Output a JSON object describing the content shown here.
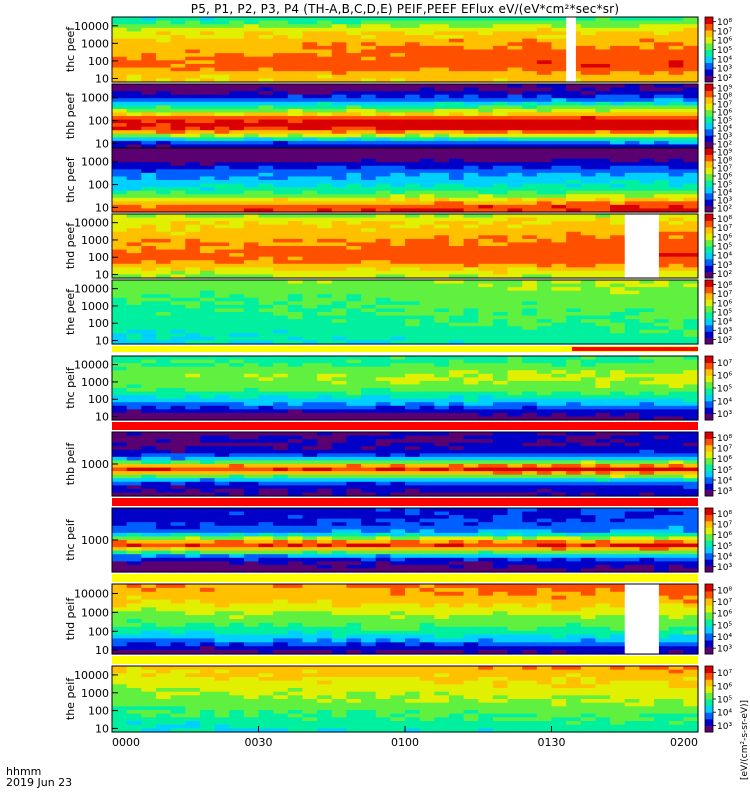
{
  "title": "P5, P1, P2, P3, P4 (TH-A,B,C,D,E) PEIF,PEEF EFlux eV/(eV*cm²*sec*sr)",
  "time_axis": {
    "unit_label": "hhmm",
    "date_label": "2019 Jun 23",
    "ticks": [
      "0000",
      "0030",
      "0100",
      "0130",
      "0200"
    ]
  },
  "colorbar_unit": "[eV/(cm²-s-sr-eV)]",
  "colors": {
    "spectrogram_scale": [
      "#5a0070",
      "#0000c8",
      "#0060ff",
      "#00d0ff",
      "#00f0a0",
      "#60f040",
      "#e0f000",
      "#ffc000",
      "#ff5000",
      "#d80000"
    ],
    "separator_red": "#ff0000",
    "separator_yellow": "#ffff00"
  },
  "chart_data": [
    {
      "type": "heatmap",
      "ylabel": "thc peef",
      "y_scale": "log",
      "y_ticks": [
        "10",
        "100",
        "1000",
        "10000"
      ],
      "x_range": [
        "0000",
        "0200"
      ],
      "colorbar_ticks": [
        "10²",
        "10³",
        "10⁴",
        "10⁵",
        "10⁶",
        "10⁷",
        "10⁸"
      ],
      "gaps": [
        {
          "x_from": "0133",
          "x_to": "0135"
        }
      ],
      "energy_profile": [
        0.72,
        0.74,
        0.78,
        0.82,
        0.86,
        0.85,
        0.84,
        0.83,
        0.82,
        0.8,
        0.78,
        0.76,
        0.72,
        0.7,
        0.66,
        0.6,
        0.52,
        0.45
      ]
    },
    {
      "type": "heatmap",
      "ylabel": "thb peef",
      "y_scale": "log",
      "y_ticks": [
        "10",
        "100",
        "1000"
      ],
      "x_range": [
        "0000",
        "0200"
      ],
      "colorbar_ticks": [
        "10²",
        "10³",
        "10⁴",
        "10⁵",
        "10⁶",
        "10⁷",
        "10⁸",
        "10⁹"
      ],
      "gaps": [],
      "energy_profile": [
        0.15,
        0.25,
        0.42,
        0.62,
        0.8,
        0.92,
        0.96,
        0.94,
        0.86,
        0.72,
        0.6,
        0.5,
        0.38,
        0.26,
        0.18,
        0.12,
        0.08,
        0.06
      ]
    },
    {
      "type": "heatmap",
      "ylabel": "thc peef",
      "y_scale": "log",
      "y_ticks": [
        "10",
        "100",
        "1000"
      ],
      "x_range": [
        "0000",
        "0200"
      ],
      "colorbar_ticks": [
        "10²",
        "10³",
        "10⁴",
        "10⁵",
        "10⁶",
        "10⁷",
        "10⁸",
        "10⁹"
      ],
      "gaps": [],
      "energy_profile": [
        0.9,
        0.86,
        0.78,
        0.68,
        0.58,
        0.5,
        0.44,
        0.4,
        0.36,
        0.33,
        0.3,
        0.25,
        0.2,
        0.14,
        0.08,
        0.04,
        0.02,
        0.0
      ]
    },
    {
      "type": "heatmap",
      "ylabel": "thd peef",
      "y_scale": "log",
      "y_ticks": [
        "10",
        "100",
        "1000",
        "10000"
      ],
      "x_range": [
        "0000",
        "0200"
      ],
      "colorbar_ticks": [
        "10²",
        "10³",
        "10⁴",
        "10⁵",
        "10⁶",
        "10⁷",
        "10⁸"
      ],
      "gaps": [
        {
          "x_from": "0145",
          "x_to": "0152"
        }
      ],
      "energy_profile": [
        0.62,
        0.66,
        0.72,
        0.78,
        0.82,
        0.84,
        0.85,
        0.84,
        0.83,
        0.82,
        0.8,
        0.78,
        0.76,
        0.74,
        0.72,
        0.7,
        0.66,
        0.6
      ]
    },
    {
      "type": "heatmap",
      "ylabel": "the peef",
      "y_scale": "log",
      "y_ticks": [
        "10",
        "100",
        "1000",
        "10000"
      ],
      "x_range": [
        "0000",
        "0200"
      ],
      "colorbar_ticks": [
        "10²",
        "10³",
        "10⁴",
        "10⁵",
        "10⁶",
        "10⁷",
        "10⁸"
      ],
      "gaps": [],
      "energy_profile": [
        0.42,
        0.43,
        0.44,
        0.45,
        0.46,
        0.47,
        0.48,
        0.49,
        0.5,
        0.5,
        0.51,
        0.52,
        0.53,
        0.54,
        0.55,
        0.56,
        0.57,
        0.58
      ]
    },
    {
      "type": "heatmap",
      "ylabel": "thc peif",
      "y_scale": "log",
      "y_ticks": [
        "10",
        "100",
        "1000",
        "10000"
      ],
      "x_range": [
        "0000",
        "0200"
      ],
      "colorbar_ticks": [
        "10³",
        "10⁴",
        "10⁵",
        "10⁶",
        "10⁷"
      ],
      "gaps": [],
      "energy_profile": [
        0.05,
        0.08,
        0.14,
        0.22,
        0.3,
        0.36,
        0.42,
        0.48,
        0.53,
        0.56,
        0.58,
        0.6,
        0.6,
        0.58,
        0.55,
        0.52,
        0.5,
        0.48
      ]
    },
    {
      "type": "heatmap",
      "ylabel": "thb peif",
      "y_scale": "log",
      "y_ticks": [
        "1000"
      ],
      "x_range": [
        "0000",
        "0200"
      ],
      "colorbar_ticks": [
        "10³",
        "10⁴",
        "10⁵",
        "10⁶",
        "10⁷",
        "10⁸"
      ],
      "gaps": [],
      "energy_profile": [
        0.1,
        0.12,
        0.15,
        0.22,
        0.35,
        0.55,
        0.78,
        0.92,
        0.78,
        0.55,
        0.35,
        0.22,
        0.15,
        0.12,
        0.1,
        0.1,
        0.1,
        0.1
      ]
    },
    {
      "type": "heatmap",
      "ylabel": "thc peif",
      "y_scale": "log",
      "y_ticks": [
        "1000"
      ],
      "x_range": [
        "0000",
        "0200"
      ],
      "colorbar_ticks": [
        "10³",
        "10⁴",
        "10⁵",
        "10⁶",
        "10⁷",
        "10⁸"
      ],
      "gaps": [],
      "energy_profile": [
        0.05,
        0.08,
        0.12,
        0.2,
        0.32,
        0.52,
        0.75,
        0.9,
        0.8,
        0.6,
        0.4,
        0.28,
        0.25,
        0.22,
        0.2,
        0.18,
        0.18,
        0.18
      ]
    },
    {
      "type": "heatmap",
      "ylabel": "thd peif",
      "y_scale": "log",
      "y_ticks": [
        "10",
        "100",
        "1000",
        "10000"
      ],
      "x_range": [
        "0000",
        "0200"
      ],
      "colorbar_ticks": [
        "10³",
        "10⁴",
        "10⁵",
        "10⁶",
        "10⁷",
        "10⁸"
      ],
      "gaps": [
        {
          "x_from": "0145",
          "x_to": "0152"
        }
      ],
      "energy_profile": [
        0.08,
        0.14,
        0.22,
        0.3,
        0.38,
        0.44,
        0.48,
        0.52,
        0.55,
        0.58,
        0.62,
        0.66,
        0.7,
        0.74,
        0.76,
        0.78,
        0.8,
        0.82
      ]
    },
    {
      "type": "heatmap",
      "ylabel": "the peif",
      "y_scale": "log",
      "y_ticks": [
        "10",
        "100",
        "1000",
        "10000"
      ],
      "x_range": [
        "0000",
        "0200"
      ],
      "colorbar_ticks": [
        "10³",
        "10⁴",
        "10⁵",
        "10⁶",
        "10⁷"
      ],
      "gaps": [],
      "energy_profile": [
        0.42,
        0.44,
        0.46,
        0.48,
        0.5,
        0.52,
        0.54,
        0.56,
        0.58,
        0.6,
        0.62,
        0.64,
        0.66,
        0.68,
        0.7,
        0.72,
        0.74,
        0.76
      ]
    }
  ]
}
